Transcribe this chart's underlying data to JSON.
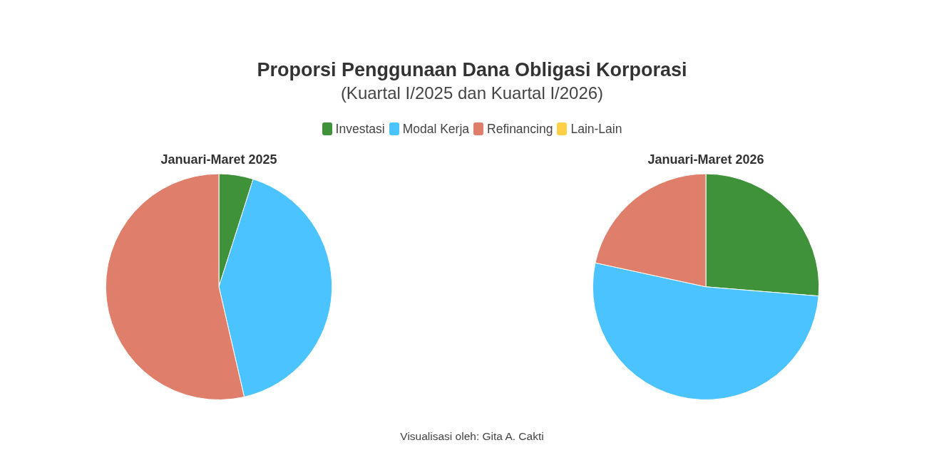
{
  "chart_data": {
    "type": "pie",
    "title": "Proporsi Penggunaan Dana Obligasi Korporasi",
    "subtitle": "(Kuartal I/2025 dan Kuartal I/2026)",
    "categories": [
      "Investasi",
      "Modal Kerja",
      "Refinancing",
      "Lain-Lain"
    ],
    "colors": [
      "#3f923a",
      "#4bc3ff",
      "#e07e6c",
      "#ffd045"
    ],
    "series": [
      {
        "name": "Januari-Maret 2025",
        "values": [
          4.9,
          41.5,
          53.6,
          0
        ]
      },
      {
        "name": "Januari-Maret 2026",
        "values": [
          26.3,
          52.1,
          21.6,
          0
        ]
      }
    ],
    "legend": "top",
    "annotations": [
      "Visualisasi oleh: Gita A. Cakti"
    ]
  }
}
